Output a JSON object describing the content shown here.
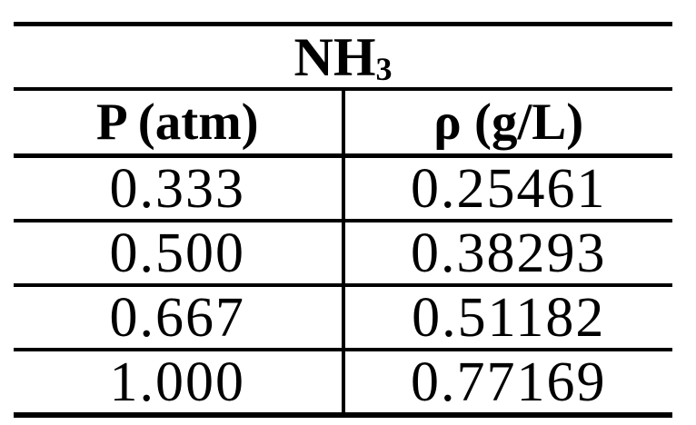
{
  "page": {
    "background": "#ffffff",
    "text_color": "#000000",
    "border_color": "#000000"
  },
  "table": {
    "title_main": "NH",
    "title_sub": "3",
    "headers": [
      "P (atm)",
      "ρ (g/L)"
    ],
    "rows": [
      [
        "0.333",
        "0.25461"
      ],
      [
        "0.500",
        "0.38293"
      ],
      [
        "0.667",
        "0.51182"
      ],
      [
        "1.000",
        "0.77169"
      ]
    ]
  },
  "chart_data": {
    "type": "table",
    "title": "NH₃",
    "columns": [
      "P (atm)",
      "ρ (g/L)"
    ],
    "rows": [
      [
        0.333,
        0.25461
      ],
      [
        0.5,
        0.38293
      ],
      [
        0.667,
        0.51182
      ],
      [
        1.0,
        0.77169
      ]
    ],
    "x_label": "P (atm)",
    "y_label": "ρ (g/L)"
  }
}
